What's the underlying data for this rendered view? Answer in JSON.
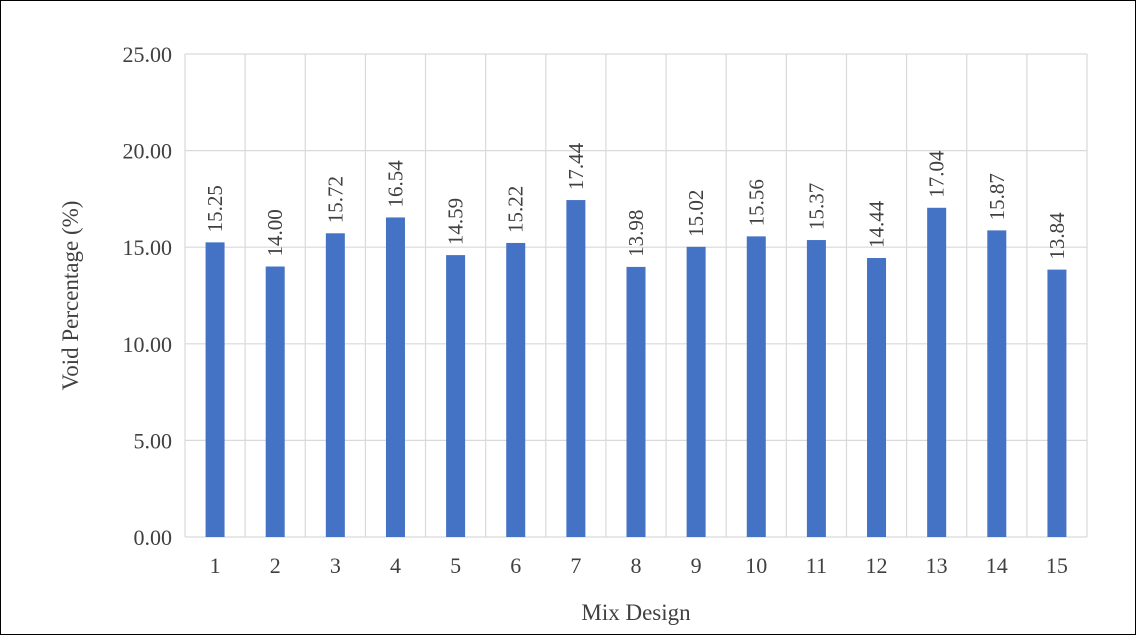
{
  "chart_data": {
    "type": "bar",
    "xlabel": "Mix Design",
    "ylabel": "Void Percentage (%)",
    "ylim": [
      0,
      25
    ],
    "y_ticks": [
      "0.00",
      "5.00",
      "10.00",
      "15.00",
      "20.00",
      "25.00"
    ],
    "categories": [
      "1",
      "2",
      "3",
      "4",
      "5",
      "6",
      "7",
      "8",
      "9",
      "10",
      "11",
      "12",
      "13",
      "14",
      "15"
    ],
    "values": [
      15.25,
      14.0,
      15.72,
      16.54,
      14.59,
      15.22,
      17.44,
      13.98,
      15.02,
      15.56,
      15.37,
      14.44,
      17.04,
      15.87,
      13.84
    ],
    "value_labels": [
      "15.25",
      "14.00",
      "15.72",
      "16.54",
      "14.59",
      "15.22",
      "17.44",
      "13.98",
      "15.02",
      "15.56",
      "15.37",
      "14.44",
      "17.04",
      "15.87",
      "13.84"
    ],
    "grid": true,
    "gridlines": "vertical-and-horizontal",
    "legend": "none",
    "colors": {
      "bar": "#4472C4",
      "grid": "#D9D9D9",
      "text": "#404040"
    }
  }
}
